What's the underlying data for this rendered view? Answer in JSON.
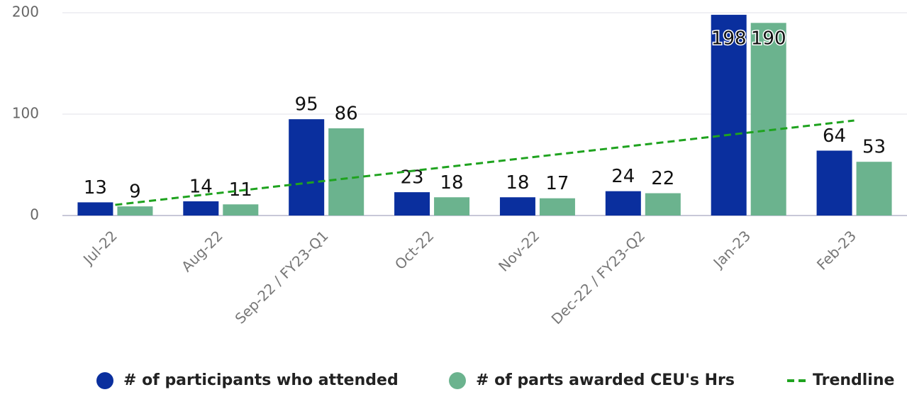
{
  "chart_data": {
    "type": "bar",
    "categories": [
      "Jul-22",
      "Aug-22",
      "Sep-22 / FY23-Q1",
      "Oct-22",
      "Nov-22",
      "Dec-22 / FY23-Q2",
      "Jan-23",
      "Feb-23"
    ],
    "series": [
      {
        "name": "# of participants who attended",
        "color": "#0a2f9e",
        "values": [
          13,
          14,
          95,
          23,
          18,
          24,
          198,
          64
        ]
      },
      {
        "name": "# of parts awarded CEU's Hrs",
        "color": "#6bb38e",
        "values": [
          9,
          11,
          86,
          18,
          17,
          22,
          190,
          53
        ]
      },
      {
        "name": "Trendline",
        "color": "#1fa31f",
        "type": "line",
        "dashed": true,
        "values": [
          10.5,
          22.4,
          34.3,
          46.2,
          58.1,
          69.9,
          81.8,
          93.7
        ]
      }
    ],
    "ylim": [
      0,
      200
    ],
    "yticks": [
      0,
      100,
      200
    ],
    "grid": true,
    "legend": "bottom"
  }
}
